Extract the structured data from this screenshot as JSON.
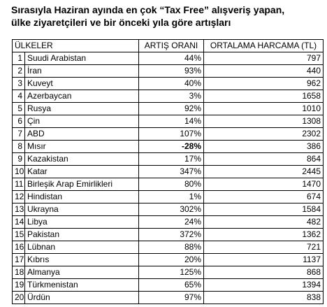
{
  "title": {
    "line1": "Sırasıyla Haziran ayında en çok “Tax Free” alışveriş yapan,",
    "line2": "ülke ziyaretçileri ve bir önceki yıla göre artışları"
  },
  "table": {
    "headers": {
      "country": "ÜLKELER",
      "rate": "ARTIŞ ORANI",
      "spend": "ORTALAMA HARCAMA (TL)"
    },
    "rows": [
      {
        "num": "1",
        "country": "Suudi Arabistan",
        "rate": "44%",
        "spend": "797"
      },
      {
        "num": "2",
        "country": "İran",
        "rate": "93%",
        "spend": "440"
      },
      {
        "num": "3",
        "country": "Kuveyt",
        "rate": "40%",
        "spend": "962"
      },
      {
        "num": "4",
        "country": "Azerbaycan",
        "rate": "3%",
        "spend": "1658"
      },
      {
        "num": "5",
        "country": "Rusya",
        "rate": "92%",
        "spend": "1010"
      },
      {
        "num": "6",
        "country": "Çin",
        "rate": "14%",
        "spend": "1308"
      },
      {
        "num": "7",
        "country": "ABD",
        "rate": "107%",
        "spend": "2302"
      },
      {
        "num": "8",
        "country": "Mısır",
        "rate": "-28%",
        "spend": "386",
        "bold": true
      },
      {
        "num": "9",
        "country": "Kazakistan",
        "rate": "17%",
        "spend": "864"
      },
      {
        "num": "10",
        "country": "Katar",
        "rate": "347%",
        "spend": "2445"
      },
      {
        "num": "11",
        "country": "Birleşik Arap Emirlikleri",
        "rate": "80%",
        "spend": "1470"
      },
      {
        "num": "12",
        "country": "Hindistan",
        "rate": "1%",
        "spend": "674"
      },
      {
        "num": "13",
        "country": "Ukrayna",
        "rate": "302%",
        "spend": "1584"
      },
      {
        "num": "14",
        "country": "Libya",
        "rate": "24%",
        "spend": "482"
      },
      {
        "num": "15",
        "country": "Pakistan",
        "rate": "372%",
        "spend": "1362"
      },
      {
        "num": "16",
        "country": "Lübnan",
        "rate": "88%",
        "spend": "721"
      },
      {
        "num": "17",
        "country": "Kıbrıs",
        "rate": "20%",
        "spend": "1137"
      },
      {
        "num": "18",
        "country": "Almanya",
        "rate": "125%",
        "spend": "868"
      },
      {
        "num": "19",
        "country": "Türkmenistan",
        "rate": "65%",
        "spend": "1394"
      },
      {
        "num": "20",
        "country": "Ürdün",
        "rate": "97%",
        "spend": "838"
      }
    ]
  }
}
